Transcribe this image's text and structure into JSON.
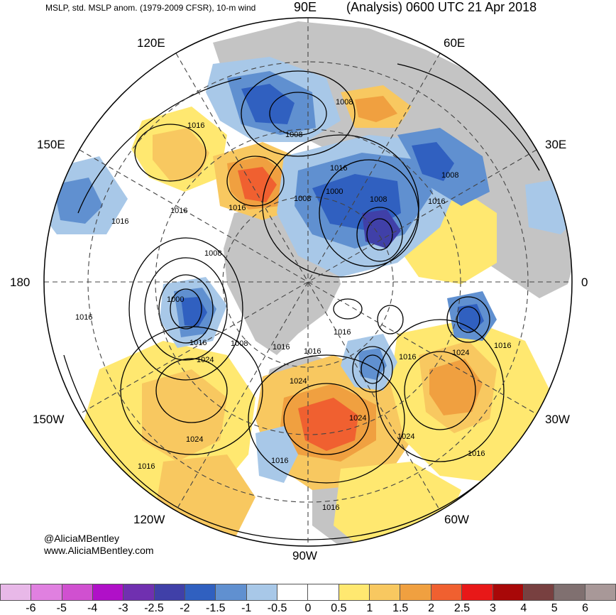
{
  "header": {
    "left_text": "MSLP, std. MSLP anom. (1979-2009 CFSR), 10-m wind",
    "center_text": "90E",
    "right_text": "(Analysis) 0600 UTC 21 Apr 2018"
  },
  "longitude_labels": {
    "e120": "120E",
    "e60": "60E",
    "e150": "150E",
    "e30": "30E",
    "d180": "180",
    "d0": "0",
    "w150": "150W",
    "w30": "30W",
    "w120": "120W",
    "w60": "60W",
    "w90": "90W"
  },
  "contour_labels": [
    "1016",
    "1008",
    "1008",
    "1016",
    "1016",
    "1008",
    "1000",
    "1008",
    "1008",
    "1016",
    "1016",
    "1016",
    "1008",
    "1000",
    "1016",
    "1008",
    "1016",
    "1016",
    "1016",
    "1016",
    "1016",
    "1024",
    "1024",
    "1024",
    "1024",
    "1024",
    "1024",
    "1016",
    "1016",
    "1016",
    "1016",
    "1016"
  ],
  "credits": {
    "line1": "@AliciaMBentley",
    "line2": "www.AliciaMBentley.com"
  },
  "colorbar": {
    "colors": [
      "#e8b8e8",
      "#e080e0",
      "#d050d0",
      "#b010c8",
      "#7030b0",
      "#4040a8",
      "#3060c0",
      "#6090d0",
      "#a8c8e8",
      "#ffffff",
      "#ffffff",
      "#ffe870",
      "#f8c860",
      "#f0a040",
      "#f06030",
      "#e81818",
      "#a80808",
      "#784040",
      "#807070",
      "#a89898"
    ],
    "tick_labels": [
      "-6",
      "-5",
      "-4",
      "-3",
      "-2.5",
      "-2",
      "-1.5",
      "-1",
      "-0.5",
      "0",
      "0.5",
      "1",
      "1.5",
      "2",
      "2.5",
      "3",
      "4",
      "5",
      "6"
    ]
  },
  "palette": {
    "land_gray": "#c0c0c0",
    "contour": "#000000"
  }
}
